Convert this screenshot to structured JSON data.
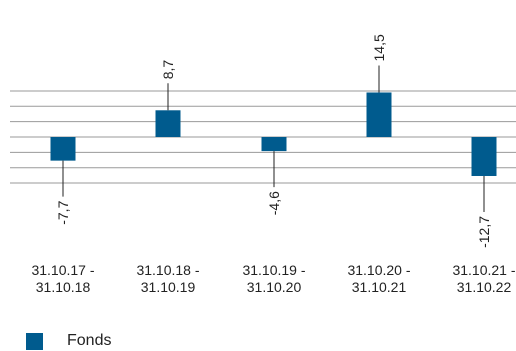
{
  "chart_data": {
    "type": "bar",
    "categories": [
      "31.10.17 -\n31.10.18",
      "31.10.18 -\n31.10.19",
      "31.10.19 -\n31.10.20",
      "31.10.20 -\n31.10.21",
      "31.10.21 -\n31.10.22"
    ],
    "series": [
      {
        "name": "Fonds",
        "values": [
          -7.7,
          8.7,
          -4.6,
          14.5,
          -12.7
        ],
        "labels": [
          "-7,7",
          "8,7",
          "-4,6",
          "14,5",
          "-12,7"
        ],
        "color": "#005b8e"
      }
    ],
    "ylim": [
      -15,
      15
    ],
    "grid": true,
    "legend": "bottom-left"
  }
}
